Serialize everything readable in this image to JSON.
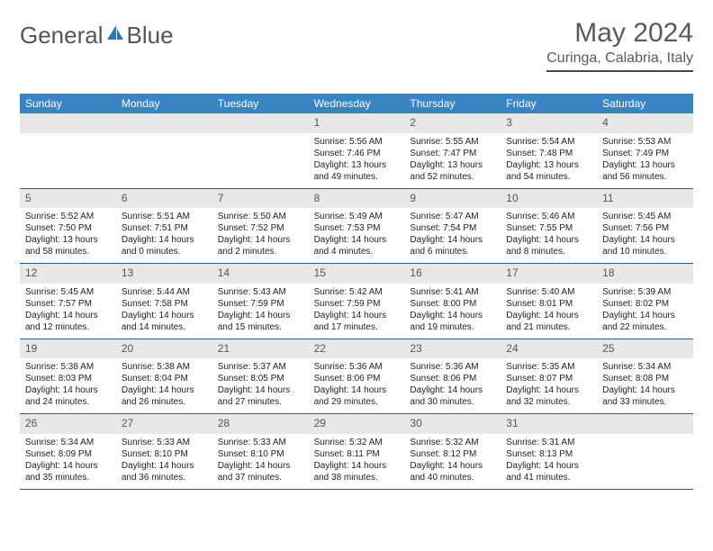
{
  "logo": {
    "part1": "General",
    "part2": "Blue"
  },
  "title": "May 2024",
  "location": "Curinga, Calabria, Italy",
  "colors": {
    "header_bg": "#3b84c4",
    "header_fg": "#ffffff",
    "daynum_bg": "#e8e8e8",
    "daynum_fg": "#555555",
    "week_border": "#2b5b8a",
    "logo_accent": "#2f77b9"
  },
  "dayNames": [
    "Sunday",
    "Monday",
    "Tuesday",
    "Wednesday",
    "Thursday",
    "Friday",
    "Saturday"
  ],
  "weeks": [
    [
      null,
      null,
      null,
      {
        "n": "1",
        "sr": "5:56 AM",
        "ss": "7:46 PM",
        "dl1": "Daylight: 13 hours",
        "dl2": "and 49 minutes."
      },
      {
        "n": "2",
        "sr": "5:55 AM",
        "ss": "7:47 PM",
        "dl1": "Daylight: 13 hours",
        "dl2": "and 52 minutes."
      },
      {
        "n": "3",
        "sr": "5:54 AM",
        "ss": "7:48 PM",
        "dl1": "Daylight: 13 hours",
        "dl2": "and 54 minutes."
      },
      {
        "n": "4",
        "sr": "5:53 AM",
        "ss": "7:49 PM",
        "dl1": "Daylight: 13 hours",
        "dl2": "and 56 minutes."
      }
    ],
    [
      {
        "n": "5",
        "sr": "5:52 AM",
        "ss": "7:50 PM",
        "dl1": "Daylight: 13 hours",
        "dl2": "and 58 minutes."
      },
      {
        "n": "6",
        "sr": "5:51 AM",
        "ss": "7:51 PM",
        "dl1": "Daylight: 14 hours",
        "dl2": "and 0 minutes."
      },
      {
        "n": "7",
        "sr": "5:50 AM",
        "ss": "7:52 PM",
        "dl1": "Daylight: 14 hours",
        "dl2": "and 2 minutes."
      },
      {
        "n": "8",
        "sr": "5:49 AM",
        "ss": "7:53 PM",
        "dl1": "Daylight: 14 hours",
        "dl2": "and 4 minutes."
      },
      {
        "n": "9",
        "sr": "5:47 AM",
        "ss": "7:54 PM",
        "dl1": "Daylight: 14 hours",
        "dl2": "and 6 minutes."
      },
      {
        "n": "10",
        "sr": "5:46 AM",
        "ss": "7:55 PM",
        "dl1": "Daylight: 14 hours",
        "dl2": "and 8 minutes."
      },
      {
        "n": "11",
        "sr": "5:45 AM",
        "ss": "7:56 PM",
        "dl1": "Daylight: 14 hours",
        "dl2": "and 10 minutes."
      }
    ],
    [
      {
        "n": "12",
        "sr": "5:45 AM",
        "ss": "7:57 PM",
        "dl1": "Daylight: 14 hours",
        "dl2": "and 12 minutes."
      },
      {
        "n": "13",
        "sr": "5:44 AM",
        "ss": "7:58 PM",
        "dl1": "Daylight: 14 hours",
        "dl2": "and 14 minutes."
      },
      {
        "n": "14",
        "sr": "5:43 AM",
        "ss": "7:59 PM",
        "dl1": "Daylight: 14 hours",
        "dl2": "and 15 minutes."
      },
      {
        "n": "15",
        "sr": "5:42 AM",
        "ss": "7:59 PM",
        "dl1": "Daylight: 14 hours",
        "dl2": "and 17 minutes."
      },
      {
        "n": "16",
        "sr": "5:41 AM",
        "ss": "8:00 PM",
        "dl1": "Daylight: 14 hours",
        "dl2": "and 19 minutes."
      },
      {
        "n": "17",
        "sr": "5:40 AM",
        "ss": "8:01 PM",
        "dl1": "Daylight: 14 hours",
        "dl2": "and 21 minutes."
      },
      {
        "n": "18",
        "sr": "5:39 AM",
        "ss": "8:02 PM",
        "dl1": "Daylight: 14 hours",
        "dl2": "and 22 minutes."
      }
    ],
    [
      {
        "n": "19",
        "sr": "5:38 AM",
        "ss": "8:03 PM",
        "dl1": "Daylight: 14 hours",
        "dl2": "and 24 minutes."
      },
      {
        "n": "20",
        "sr": "5:38 AM",
        "ss": "8:04 PM",
        "dl1": "Daylight: 14 hours",
        "dl2": "and 26 minutes."
      },
      {
        "n": "21",
        "sr": "5:37 AM",
        "ss": "8:05 PM",
        "dl1": "Daylight: 14 hours",
        "dl2": "and 27 minutes."
      },
      {
        "n": "22",
        "sr": "5:36 AM",
        "ss": "8:06 PM",
        "dl1": "Daylight: 14 hours",
        "dl2": "and 29 minutes."
      },
      {
        "n": "23",
        "sr": "5:36 AM",
        "ss": "8:06 PM",
        "dl1": "Daylight: 14 hours",
        "dl2": "and 30 minutes."
      },
      {
        "n": "24",
        "sr": "5:35 AM",
        "ss": "8:07 PM",
        "dl1": "Daylight: 14 hours",
        "dl2": "and 32 minutes."
      },
      {
        "n": "25",
        "sr": "5:34 AM",
        "ss": "8:08 PM",
        "dl1": "Daylight: 14 hours",
        "dl2": "and 33 minutes."
      }
    ],
    [
      {
        "n": "26",
        "sr": "5:34 AM",
        "ss": "8:09 PM",
        "dl1": "Daylight: 14 hours",
        "dl2": "and 35 minutes."
      },
      {
        "n": "27",
        "sr": "5:33 AM",
        "ss": "8:10 PM",
        "dl1": "Daylight: 14 hours",
        "dl2": "and 36 minutes."
      },
      {
        "n": "28",
        "sr": "5:33 AM",
        "ss": "8:10 PM",
        "dl1": "Daylight: 14 hours",
        "dl2": "and 37 minutes."
      },
      {
        "n": "29",
        "sr": "5:32 AM",
        "ss": "8:11 PM",
        "dl1": "Daylight: 14 hours",
        "dl2": "and 38 minutes."
      },
      {
        "n": "30",
        "sr": "5:32 AM",
        "ss": "8:12 PM",
        "dl1": "Daylight: 14 hours",
        "dl2": "and 40 minutes."
      },
      {
        "n": "31",
        "sr": "5:31 AM",
        "ss": "8:13 PM",
        "dl1": "Daylight: 14 hours",
        "dl2": "and 41 minutes."
      },
      null
    ]
  ]
}
